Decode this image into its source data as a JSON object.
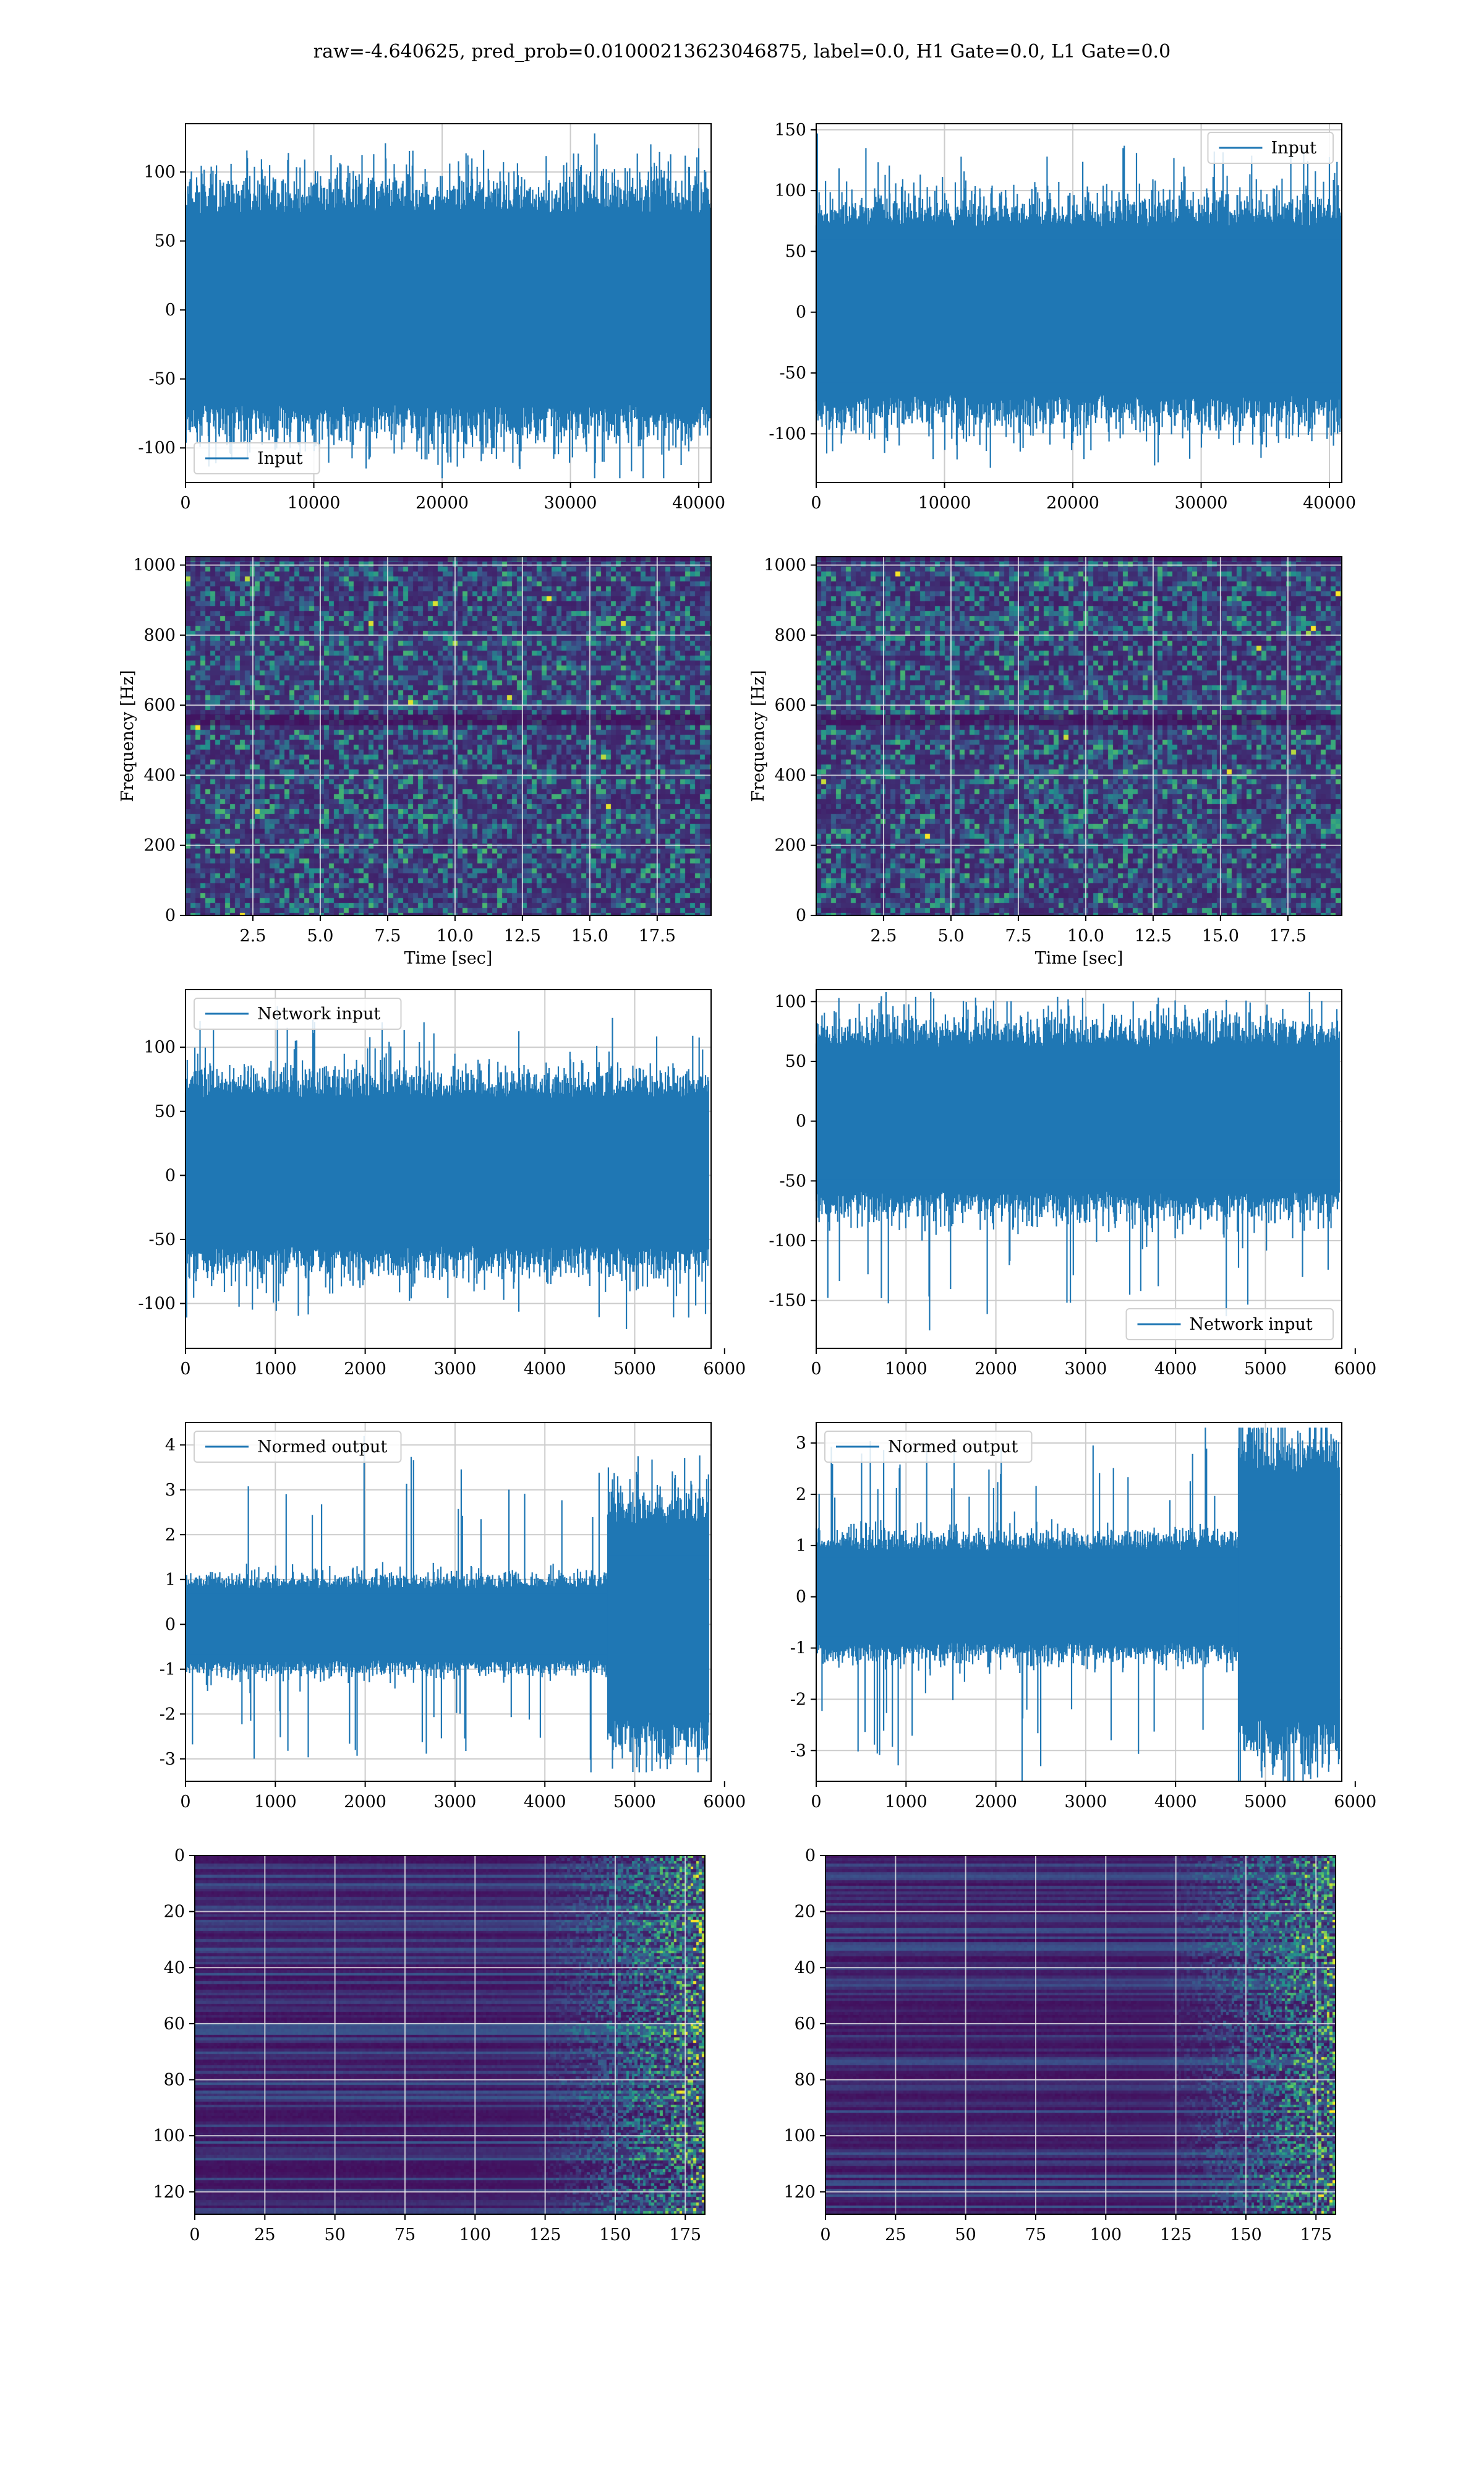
{
  "suptitle": "raw=-4.640625, pred_prob=0.01000213623046875, label=0.0, H1 Gate=0.0, L1 Gate=0.0",
  "colors": {
    "line": "#1f77b4",
    "grid": "#cccccc",
    "viridis": [
      "#440154",
      "#3b528b",
      "#21918c",
      "#5ec962",
      "#fde725"
    ]
  },
  "chart_data": [
    {
      "type": "line",
      "name": "raw-strain-h1",
      "legend": "Input",
      "legend_loc": "lower left",
      "x_range": [
        0,
        40960
      ],
      "ylim": [
        -125,
        135
      ],
      "xticks": [
        0,
        10000,
        20000,
        30000,
        40000
      ],
      "yticks": [
        -100,
        -50,
        0,
        50,
        100
      ],
      "band": [
        -68,
        70
      ],
      "extremes": [
        -122,
        128
      ],
      "xlabel": "",
      "ylabel": "",
      "grid": true
    },
    {
      "type": "line",
      "name": "raw-strain-l1",
      "legend": "Input",
      "legend_loc": "upper right",
      "x_range": [
        0,
        40960
      ],
      "ylim": [
        -140,
        155
      ],
      "xticks": [
        0,
        10000,
        20000,
        30000,
        40000
      ],
      "yticks": [
        -100,
        -50,
        0,
        50,
        100,
        150
      ],
      "band": [
        -68,
        70
      ],
      "extremes": [
        -128,
        147
      ],
      "xlabel": "",
      "ylabel": "",
      "grid": true
    },
    {
      "type": "heatmap",
      "name": "spectrogram-h1",
      "x_range": [
        0,
        19.5
      ],
      "y_range": [
        0,
        1024
      ],
      "xticks": [
        2.5,
        5.0,
        7.5,
        10.0,
        12.5,
        15.0,
        17.5
      ],
      "yticks": [
        0,
        200,
        400,
        600,
        800,
        1000
      ],
      "xlabel": "Time [sec]",
      "ylabel": "Frequency [Hz]",
      "grid": true
    },
    {
      "type": "heatmap",
      "name": "spectrogram-l1",
      "x_range": [
        0,
        19.5
      ],
      "y_range": [
        0,
        1024
      ],
      "xticks": [
        2.5,
        5.0,
        7.5,
        10.0,
        12.5,
        15.0,
        17.5
      ],
      "yticks": [
        0,
        200,
        400,
        600,
        800,
        1000
      ],
      "xlabel": "Time [sec]",
      "ylabel": "Frequency [Hz]",
      "grid": true
    },
    {
      "type": "line",
      "name": "network-input-h1",
      "legend": "Network input",
      "legend_loc": "upper left",
      "x_range": [
        0,
        5850
      ],
      "ylim": [
        -135,
        145
      ],
      "xticks": [
        0,
        1000,
        2000,
        3000,
        4000,
        5000,
        6000
      ],
      "yticks": [
        -100,
        -50,
        0,
        50,
        100
      ],
      "band": [
        -55,
        60
      ],
      "extremes": [
        -120,
        132
      ],
      "xlabel": "",
      "ylabel": "",
      "grid": true
    },
    {
      "type": "line",
      "name": "network-input-l1",
      "legend": "Network input",
      "legend_loc": "lower right",
      "x_range": [
        0,
        5850
      ],
      "ylim": [
        -190,
        110
      ],
      "xticks": [
        0,
        1000,
        2000,
        3000,
        4000,
        5000,
        6000
      ],
      "yticks": [
        -150,
        -100,
        -50,
        0,
        50,
        100
      ],
      "band": [
        -58,
        62
      ],
      "extremes": [
        -175,
        108
      ],
      "xlabel": "",
      "ylabel": "",
      "grid": true
    },
    {
      "type": "line",
      "name": "normed-output-h1",
      "legend": "Normed output",
      "legend_loc": "upper left",
      "x_range": [
        0,
        5850
      ],
      "ylim": [
        -3.5,
        4.5
      ],
      "xticks": [
        0,
        1000,
        2000,
        3000,
        4000,
        5000,
        6000
      ],
      "yticks": [
        -3,
        -2,
        -1,
        0,
        1,
        2,
        3,
        4
      ],
      "band": [
        -0.8,
        0.8
      ],
      "loud_after": 4700,
      "loud_band": [
        -2.1,
        2.2
      ],
      "extremes": [
        -3.3,
        4.2
      ],
      "xlabel": "",
      "ylabel": "",
      "grid": true
    },
    {
      "type": "line",
      "name": "normed-output-l1",
      "legend": "Normed output",
      "legend_loc": "upper left",
      "x_range": [
        0,
        5850
      ],
      "ylim": [
        -3.6,
        3.4
      ],
      "xticks": [
        0,
        1000,
        2000,
        3000,
        4000,
        5000,
        6000
      ],
      "yticks": [
        -3,
        -2,
        -1,
        0,
        1,
        2,
        3
      ],
      "band": [
        -0.9,
        0.9
      ],
      "loud_after": 4700,
      "loud_band": [
        -2.4,
        2.4
      ],
      "extremes": [
        -3.6,
        3.3
      ],
      "xlabel": "",
      "ylabel": "",
      "grid": true
    },
    {
      "type": "heatmap",
      "name": "feature-map-h1",
      "x_range": [
        0,
        182
      ],
      "y_range": [
        0,
        128
      ],
      "y_inverted": true,
      "xticks": [
        0,
        25,
        50,
        75,
        100,
        125,
        150,
        175
      ],
      "yticks": [
        0,
        20,
        40,
        60,
        80,
        100,
        120
      ],
      "xlabel": "",
      "ylabel": "",
      "grid": true
    },
    {
      "type": "heatmap",
      "name": "feature-map-l1",
      "x_range": [
        0,
        182
      ],
      "y_range": [
        0,
        128
      ],
      "y_inverted": true,
      "xticks": [
        0,
        25,
        50,
        75,
        100,
        125,
        150,
        175
      ],
      "yticks": [
        0,
        20,
        40,
        60,
        80,
        100,
        120
      ],
      "xlabel": "",
      "ylabel": "",
      "grid": true
    }
  ]
}
